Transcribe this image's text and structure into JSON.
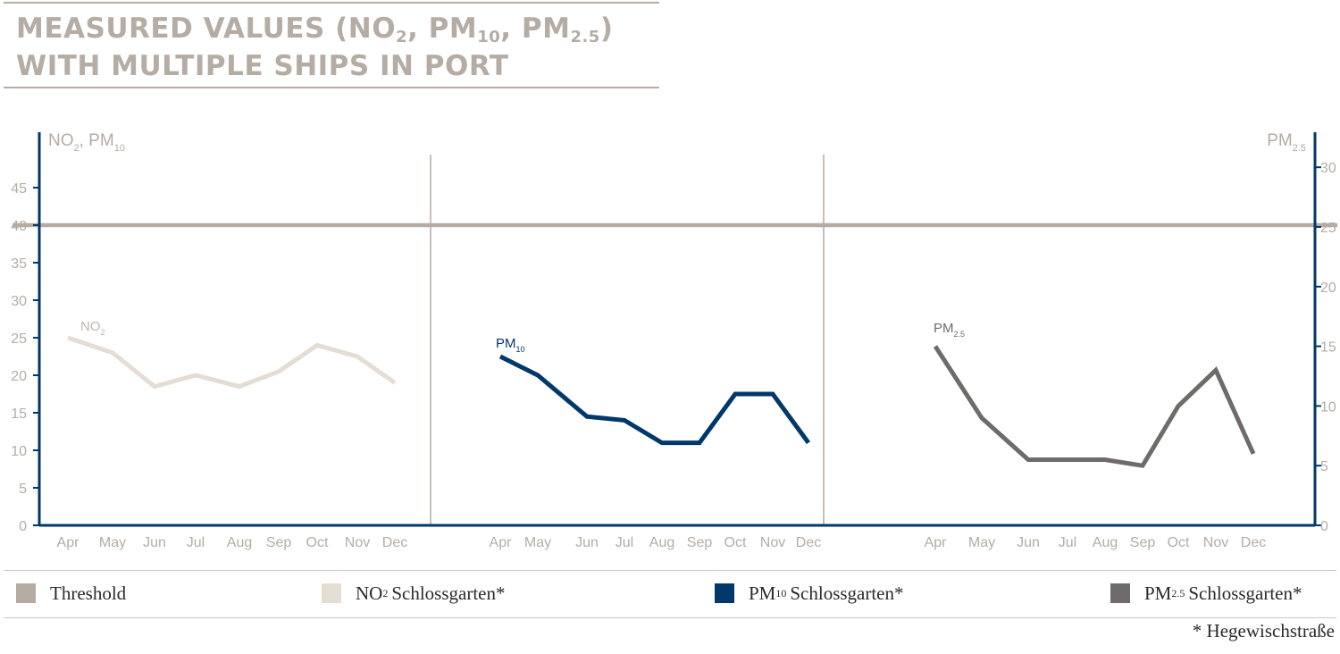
{
  "title": {
    "line1_pre": "MEASURED VALUES (NO",
    "line1_sub1": "2",
    "line1_mid1": ", PM",
    "line1_sub2": "10",
    "line1_mid2": ", PM",
    "line1_sub3": "2.5",
    "line1_end": ")",
    "line2": "WITH MULTIPLE SHIPS IN PORT"
  },
  "legend": {
    "threshold": "Threshold",
    "no2_pre": "NO",
    "no2_sub": "2",
    "no2_post": "Schlossgarten*",
    "pm10_pre": "PM",
    "pm10_sub": "10",
    "pm10_post": "Schlossgarten*",
    "pm25_pre": "PM",
    "pm25_sub": "2.5",
    "pm25_post": "Schlossgarten*"
  },
  "footnote": "* Hegewischstraße",
  "colors": {
    "threshold": "#b5aca4",
    "no2": "#e4ddd4",
    "pm10": "#00386b",
    "pm25": "#706b6b",
    "axis": "#00386b",
    "tick_text": "#b5aca4",
    "divider": "#b5aca4"
  },
  "chart_data": {
    "type": "line",
    "left_axis": {
      "label_pre": "NO",
      "label_sub": "2",
      "label_mid": ", PM",
      "label_sub2": "10",
      "ylim": [
        0,
        50
      ],
      "ticks": [
        0,
        5,
        10,
        15,
        20,
        25,
        30,
        35,
        40,
        45
      ]
    },
    "right_axis": {
      "label_pre": "PM",
      "label_sub": "2.5",
      "ylim": [
        0,
        32
      ],
      "ticks": [
        0,
        5,
        10,
        15,
        20,
        25,
        30
      ]
    },
    "threshold": {
      "left_value": 40,
      "right_value": 25
    },
    "panels": [
      {
        "series_label_pre": "NO",
        "series_label_sub": "2",
        "axis": "left",
        "color_key": "no2",
        "categories": [
          "Apr",
          "May",
          "Jun",
          "Jul",
          "Aug",
          "Sep",
          "Oct",
          "Nov",
          "Dec"
        ],
        "values": [
          25,
          23,
          18.5,
          20,
          18.5,
          20.5,
          24,
          22.5,
          19
        ]
      },
      {
        "series_label_pre": "PM",
        "series_label_sub": "10",
        "axis": "left",
        "color_key": "pm10",
        "categories": [
          "Apr",
          "May",
          "Jun",
          "Jul",
          "Aug",
          "Sep",
          "Oct",
          "Nov",
          "Dec"
        ],
        "values": [
          22.5,
          20,
          14.5,
          14,
          11,
          11,
          17.5,
          17.5,
          11
        ]
      },
      {
        "series_label_pre": "PM",
        "series_label_sub": "2.5",
        "axis": "right",
        "color_key": "pm25",
        "categories": [
          "Apr",
          "May",
          "Jun",
          "Jul",
          "Aug",
          "Sep",
          "Oct",
          "Nov",
          "Dec"
        ],
        "values": [
          15,
          9,
          5.5,
          5.5,
          5.5,
          5,
          10,
          13,
          6
        ]
      }
    ]
  }
}
